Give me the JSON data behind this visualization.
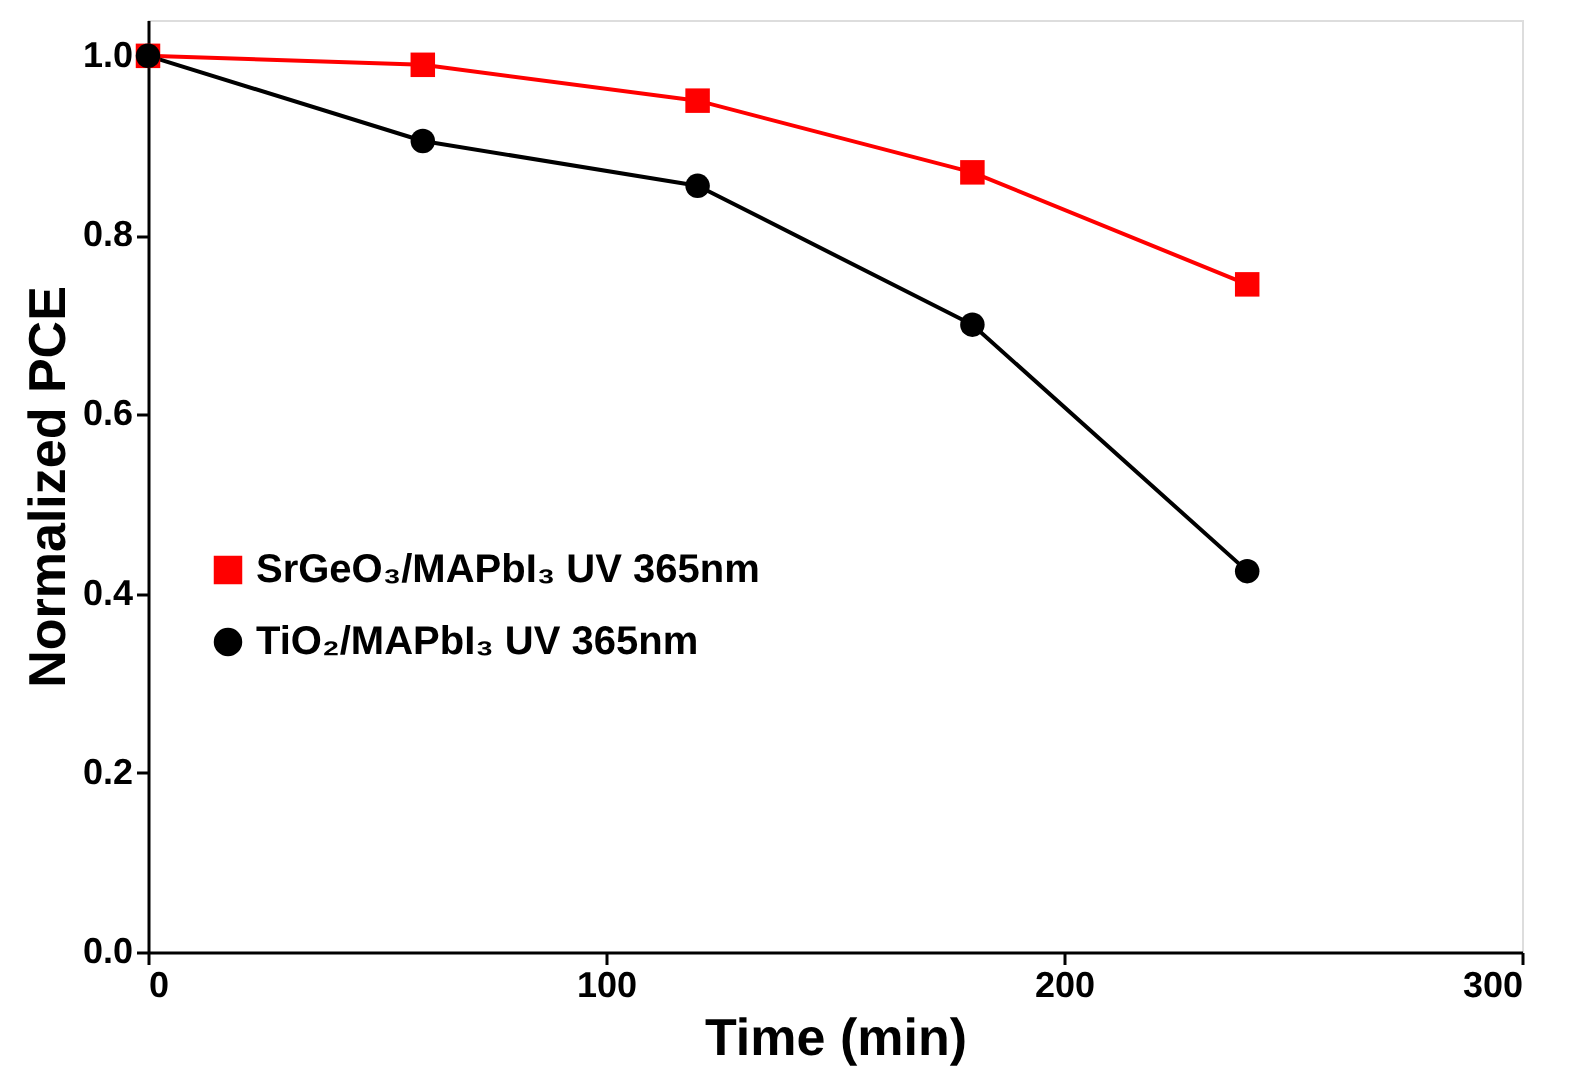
{
  "chart_data": {
    "type": "line",
    "xlabel": "Time (min)",
    "ylabel": "Normalized PCE",
    "x": [
      0,
      60,
      120,
      180,
      240
    ],
    "series": [
      {
        "name": "SrGeO₃/MAPbI₃ UV 365nm",
        "color": "#ff0000",
        "marker": "square",
        "values": [
          1.0,
          0.99,
          0.95,
          0.87,
          0.745
        ]
      },
      {
        "name": "TiO₂/MAPbI₃ UV 365nm",
        "color": "#000000",
        "marker": "circle",
        "values": [
          1.0,
          0.905,
          0.855,
          0.7,
          0.425
        ]
      }
    ],
    "xlim": [
      0,
      300
    ],
    "xticks": [
      0,
      100,
      200,
      300
    ],
    "ylim": [
      0,
      1.04
    ],
    "yticks": [
      {
        "value": 0,
        "label": "0.0"
      },
      {
        "value": 0.2,
        "label": "0.2"
      },
      {
        "value": 0.4,
        "label": "0.4"
      },
      {
        "value": 0.6,
        "label": "0.6"
      },
      {
        "value": 0.8,
        "label": "0.8"
      },
      {
        "value": 1.0,
        "label": "1.0"
      }
    ],
    "grid": false,
    "legend": "left",
    "line_style": "solid"
  }
}
